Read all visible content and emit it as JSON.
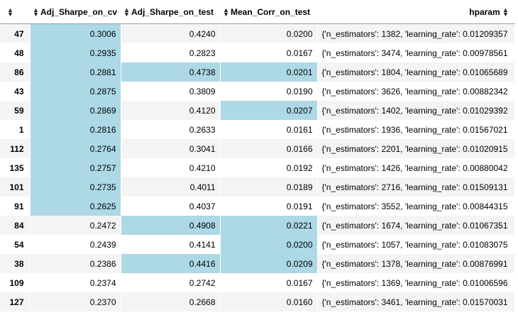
{
  "table": {
    "columns": [
      "Adj_Sharpe_on_cv",
      "Adj_Sharpe_on_test",
      "Mean_Corr_on_test",
      "hparam"
    ],
    "highlight_color": "#add8e6",
    "rows": [
      {
        "idx": "47",
        "cv": "0.3006",
        "test": "0.4240",
        "corr": "0.0200",
        "hparam": "{'n_estimators': 1382, 'learning_rate': 0.01209357",
        "hl": [
          true,
          false,
          false
        ]
      },
      {
        "idx": "48",
        "cv": "0.2935",
        "test": "0.2823",
        "corr": "0.0167",
        "hparam": "{'n_estimators': 3474, 'learning_rate': 0.00978561",
        "hl": [
          true,
          false,
          false
        ]
      },
      {
        "idx": "86",
        "cv": "0.2881",
        "test": "0.4738",
        "corr": "0.0201",
        "hparam": "{'n_estimators': 1804, 'learning_rate': 0.01065689",
        "hl": [
          true,
          true,
          true
        ]
      },
      {
        "idx": "43",
        "cv": "0.2875",
        "test": "0.3809",
        "corr": "0.0190",
        "hparam": "{'n_estimators': 3626, 'learning_rate': 0.00882342",
        "hl": [
          true,
          false,
          false
        ]
      },
      {
        "idx": "59",
        "cv": "0.2869",
        "test": "0.4120",
        "corr": "0.0207",
        "hparam": "{'n_estimators': 1402, 'learning_rate': 0.01029392",
        "hl": [
          true,
          false,
          true
        ]
      },
      {
        "idx": "1",
        "cv": "0.2816",
        "test": "0.2633",
        "corr": "0.0161",
        "hparam": "{'n_estimators': 1936, 'learning_rate': 0.01567021",
        "hl": [
          true,
          false,
          false
        ]
      },
      {
        "idx": "112",
        "cv": "0.2764",
        "test": "0.3041",
        "corr": "0.0166",
        "hparam": "{'n_estimators': 2201, 'learning_rate': 0.01020915",
        "hl": [
          true,
          false,
          false
        ]
      },
      {
        "idx": "135",
        "cv": "0.2757",
        "test": "0.4210",
        "corr": "0.0192",
        "hparam": "{'n_estimators': 1426, 'learning_rate': 0.00880042",
        "hl": [
          true,
          false,
          false
        ]
      },
      {
        "idx": "101",
        "cv": "0.2735",
        "test": "0.4011",
        "corr": "0.0189",
        "hparam": "{'n_estimators': 2716, 'learning_rate': 0.01509131",
        "hl": [
          true,
          false,
          false
        ]
      },
      {
        "idx": "91",
        "cv": "0.2625",
        "test": "0.4037",
        "corr": "0.0191",
        "hparam": "{'n_estimators': 3552, 'learning_rate': 0.00844315",
        "hl": [
          true,
          false,
          false
        ]
      },
      {
        "idx": "84",
        "cv": "0.2472",
        "test": "0.4908",
        "corr": "0.0221",
        "hparam": "{'n_estimators': 1674, 'learning_rate': 0.01067351",
        "hl": [
          false,
          true,
          true
        ]
      },
      {
        "idx": "54",
        "cv": "0.2439",
        "test": "0.4141",
        "corr": "0.0200",
        "hparam": "{'n_estimators': 1057, 'learning_rate': 0.01083075",
        "hl": [
          false,
          false,
          true
        ]
      },
      {
        "idx": "38",
        "cv": "0.2386",
        "test": "0.4416",
        "corr": "0.0209",
        "hparam": "{'n_estimators': 1378, 'learning_rate': 0.00876991",
        "hl": [
          false,
          true,
          true
        ]
      },
      {
        "idx": "109",
        "cv": "0.2374",
        "test": "0.2742",
        "corr": "0.0167",
        "hparam": "{'n_estimators': 1369, 'learning_rate': 0.01006596",
        "hl": [
          false,
          false,
          false
        ]
      },
      {
        "idx": "127",
        "cv": "0.2370",
        "test": "0.2668",
        "corr": "0.0160",
        "hparam": "{'n_estimators': 3461, 'learning_rate': 0.01570031",
        "hl": [
          false,
          false,
          false
        ]
      }
    ]
  }
}
